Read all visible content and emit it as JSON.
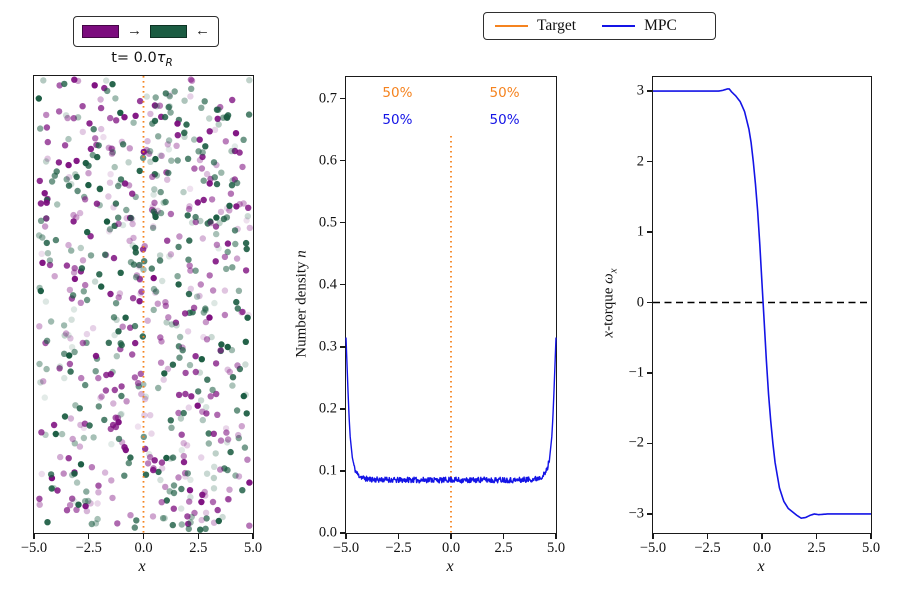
{
  "colors": {
    "orange": "#f5831f",
    "blue": "#1414e6",
    "purple": "#7c0c7e",
    "green": "#1b5c42",
    "axis": "#1a1a1a",
    "dashed_black": "#000000"
  },
  "legend": {
    "items": [
      {
        "label": "Target",
        "color": "#f5831f"
      },
      {
        "label": "MPC",
        "color": "#1414e6"
      }
    ]
  },
  "scatter_legend": {
    "right_arrow": "→",
    "left_arrow": "←"
  },
  "chart_data": [
    {
      "type": "scatter",
      "title": {
        "text": "t= 0.0τR",
        "plain": "t= 0.0",
        "tau": "τ",
        "sub": "R"
      },
      "xlabel": "x",
      "xlim": [
        -5,
        5
      ],
      "xtick_values": [
        -5,
        -2.5,
        0,
        2.5,
        5
      ],
      "xtick_labels": [
        "−5.0",
        "−2.5",
        "0.0",
        "2.5",
        "5.0"
      ],
      "species": [
        {
          "name": "right-moving",
          "color": "#7c0c7e",
          "arrow": "→"
        },
        {
          "name": "left-moving",
          "color": "#1b5c42",
          "arrow": "←"
        }
      ],
      "n_points": 720,
      "distribution": "uniform-random",
      "alpha_range": [
        0.12,
        1.0
      ],
      "point_radius_px": 3.2,
      "seed": 3,
      "vline": {
        "x": 0,
        "color": "#f5831f",
        "style": "dotted"
      }
    },
    {
      "type": "line",
      "xlabel": "x",
      "ylabel": {
        "text": "Number density n",
        "plain": "Number density ",
        "italic": "n"
      },
      "xlim": [
        -5,
        5
      ],
      "ylim": [
        0,
        0.735
      ],
      "xtick_values": [
        -5,
        -2.5,
        0,
        2.5,
        5
      ],
      "xtick_labels": [
        "−5.0",
        "−2.5",
        "0.0",
        "2.5",
        "5.0"
      ],
      "ytick_values": [
        0.0,
        0.1,
        0.2,
        0.3,
        0.4,
        0.5,
        0.6,
        0.7
      ],
      "ytick_labels": [
        "0.0",
        "0.1",
        "0.2",
        "0.3",
        "0.4",
        "0.5",
        "0.6",
        "0.7"
      ],
      "series": [
        {
          "name": "MPC",
          "color": "#1414e6",
          "x": [
            -5.0,
            -4.95,
            -4.9,
            -4.85,
            -4.8,
            -4.7,
            -4.6,
            -4.5,
            -4.4,
            -4.2,
            -4.0,
            -3.5,
            -3.0,
            -2.5,
            -2.0,
            -1.5,
            -1.0,
            -0.5,
            0.0,
            0.5,
            1.0,
            1.5,
            2.0,
            2.5,
            3.0,
            3.5,
            4.0,
            4.2,
            4.4,
            4.5,
            4.6,
            4.7,
            4.8,
            4.85,
            4.9,
            4.95,
            5.0
          ],
          "y": [
            0.315,
            0.27,
            0.225,
            0.185,
            0.155,
            0.122,
            0.105,
            0.097,
            0.093,
            0.089,
            0.087,
            0.086,
            0.086,
            0.085,
            0.086,
            0.085,
            0.086,
            0.085,
            0.086,
            0.085,
            0.085,
            0.086,
            0.085,
            0.086,
            0.085,
            0.086,
            0.087,
            0.089,
            0.093,
            0.097,
            0.105,
            0.122,
            0.155,
            0.185,
            0.225,
            0.27,
            0.315
          ],
          "noise_amp": 0.0045,
          "noise_seed": 11
        }
      ],
      "annotations": [
        {
          "text": "50%",
          "color": "#f5831f",
          "x": -2.55,
          "y": 0.71
        },
        {
          "text": "50%",
          "color": "#f5831f",
          "x": 2.55,
          "y": 0.71
        },
        {
          "text": "50%",
          "color": "#1414e6",
          "x": -2.55,
          "y": 0.665
        },
        {
          "text": "50%",
          "color": "#1414e6",
          "x": 2.55,
          "y": 0.665
        }
      ],
      "vline": {
        "x": 0,
        "color": "#f5831f",
        "style": "dotted",
        "y0": 0,
        "y1": 0.64
      }
    },
    {
      "type": "line",
      "xlabel": "x",
      "ylabel": {
        "text": "x-torque ωx",
        "pre_italic": "x",
        "plain": "-torque ",
        "omega": "ω",
        "sub": "x"
      },
      "xlim": [
        -5,
        5
      ],
      "ylim": [
        -3.27,
        3.2
      ],
      "xtick_values": [
        -5,
        -2.5,
        0,
        2.5,
        5
      ],
      "xtick_labels": [
        "−5.0",
        "−2.5",
        "0.0",
        "2.5",
        "5.0"
      ],
      "ytick_values": [
        -3,
        -2,
        -1,
        0,
        1,
        2,
        3
      ],
      "ytick_labels": [
        "−3",
        "−2",
        "−1",
        "0",
        "1",
        "2",
        "3"
      ],
      "series": [
        {
          "name": "MPC",
          "color": "#1414e6",
          "x": [
            -5,
            -4,
            -3,
            -2.5,
            -2,
            -1.8,
            -1.6,
            -1.5,
            -1.4,
            -1.2,
            -1.0,
            -0.8,
            -0.6,
            -0.5,
            -0.4,
            -0.3,
            -0.2,
            -0.1,
            0,
            0.1,
            0.2,
            0.3,
            0.4,
            0.5,
            0.6,
            0.8,
            1.0,
            1.2,
            1.4,
            1.6,
            1.8,
            2.0,
            2.2,
            2.4,
            2.6,
            3.0,
            3.5,
            4.0,
            4.5,
            5.0
          ],
          "y": [
            3.0,
            3.0,
            3.0,
            3.0,
            3.0,
            3.01,
            3.03,
            3.03,
            2.99,
            2.93,
            2.85,
            2.71,
            2.46,
            2.27,
            2.0,
            1.68,
            1.3,
            0.82,
            0.27,
            -0.27,
            -0.82,
            -1.3,
            -1.68,
            -2.0,
            -2.27,
            -2.63,
            -2.82,
            -2.92,
            -2.97,
            -3.02,
            -3.06,
            -3.05,
            -3.02,
            -3.0,
            -3.01,
            -3.0,
            -3.0,
            -3.0,
            -3.0,
            -3.0
          ]
        }
      ],
      "hline": {
        "y": 0,
        "color": "#000000",
        "style": "dashed"
      }
    }
  ]
}
